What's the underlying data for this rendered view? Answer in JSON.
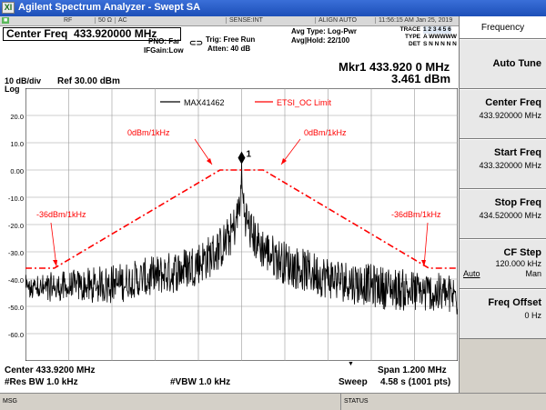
{
  "window": {
    "logo_text": "XI",
    "title": "Agilent Spectrum Analyzer - Swept SA"
  },
  "status_bar": {
    "items": [
      "RF",
      "50 Ω",
      "AC",
      "SENSE:INT",
      "ALIGN AUTO",
      "11:56:15 AM Jan 25, 2019"
    ]
  },
  "header": {
    "center_freq_label": "Center Freq",
    "center_freq_value": "433.920000 MHz",
    "pno": "PNO: Far",
    "ifgain": "IFGain:Low",
    "trig": "Trig: Free Run",
    "atten": "Atten: 40 dB",
    "avg_type": "Avg Type: Log-Pwr",
    "avg_hold": "Avg|Hold: 22/100",
    "trace_rows": [
      {
        "key": "TRACE",
        "val": "1 2 3 4 5 6"
      },
      {
        "key": "TYPE",
        "val": "A WWWWW"
      },
      {
        "key": "DET",
        "val": "S N N N N N"
      }
    ],
    "marker_label": "Mkr1 433.920 0 MHz",
    "marker_value": "3.461 dBm",
    "scale": "10 dB/div",
    "log": "Log",
    "ref_level": "Ref 30.00 dBm"
  },
  "chart_data": {
    "type": "line",
    "ylim": [
      -70,
      30
    ],
    "yticks": [
      "20.0",
      "10.0",
      "0.00",
      "-10.0",
      "-20.0",
      "-30.0",
      "-40.0",
      "-50.0",
      "-60.0"
    ],
    "x_center_mhz": 433.92,
    "x_span_mhz": 1.2,
    "grid": true,
    "legend": [
      {
        "name": "MAX41462",
        "color": "#000000",
        "style": "solid"
      },
      {
        "name": "ETSI_OC Limit",
        "color": "#ff0000",
        "style": "dashdot"
      }
    ],
    "limit_line": {
      "x_mhz": [
        433.32,
        433.4,
        433.86,
        433.9,
        433.94,
        433.98,
        434.44,
        434.52
      ],
      "y_dbm": [
        -36,
        -36,
        0,
        0,
        0,
        0,
        -36,
        -36
      ]
    },
    "annotations": [
      "0dBm/1kHz",
      "0dBm/1kHz",
      "-36dBm/1kHz",
      "-36dBm/1kHz"
    ],
    "marker": {
      "label": "1",
      "x_mhz": 433.92,
      "y_dbm": 3.461
    },
    "trace_noise_floor_dbm": -48,
    "trace_peak_dbm": 3.461
  },
  "footer": {
    "center": "Center 433.9200 MHz",
    "res_bw": "#Res BW 1.0 kHz",
    "vbw": "#VBW 1.0 kHz",
    "span": "Span 1.200 MHz",
    "sweep_label": "Sweep",
    "sweep_value": "4.58 s (1001 pts)"
  },
  "message_bar": {
    "msg": "MSG",
    "status": "STATUS"
  },
  "softkeys": {
    "title": "Frequency",
    "items": [
      {
        "label": "Auto Tune",
        "value": ""
      },
      {
        "label": "Center Freq",
        "value": "433.920000 MHz"
      },
      {
        "label": "Start Freq",
        "value": "433.320000 MHz"
      },
      {
        "label": "Stop Freq",
        "value": "434.520000 MHz"
      },
      {
        "label": "CF Step",
        "value": "120.000 kHz",
        "opt_left": "Auto",
        "opt_right": "Man"
      },
      {
        "label": "Freq Offset",
        "value": "0 Hz"
      }
    ]
  }
}
